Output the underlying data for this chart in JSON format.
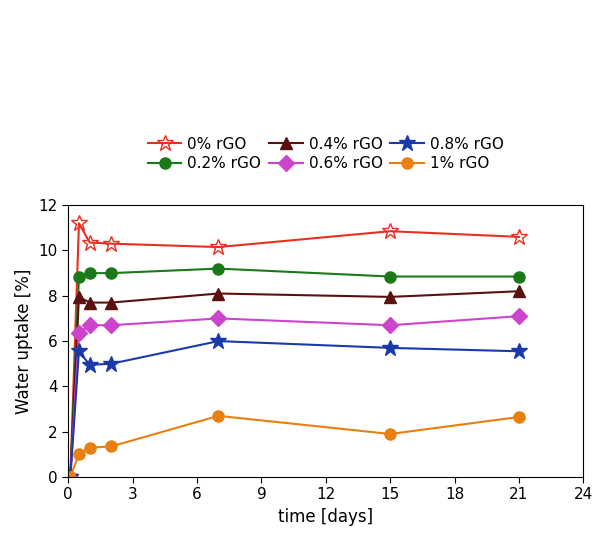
{
  "series": [
    {
      "label": "0% rGO",
      "color": "#e83020",
      "marker": "*",
      "markersize": 12,
      "markerfacecolor": "none",
      "x": [
        0,
        0.1,
        0.5,
        1,
        2,
        7,
        15,
        21
      ],
      "y": [
        0,
        0.02,
        11.2,
        10.35,
        10.3,
        10.15,
        10.85,
        10.6
      ]
    },
    {
      "label": "0.2% rGO",
      "color": "#1a7a1a",
      "marker": "o",
      "markersize": 8,
      "markerfacecolor": "#1a7a1a",
      "x": [
        0,
        0.1,
        0.5,
        1,
        2,
        7,
        15,
        21
      ],
      "y": [
        0,
        0.02,
        8.85,
        9.0,
        9.0,
        9.2,
        8.85,
        8.85
      ]
    },
    {
      "label": "0.4% rGO",
      "color": "#5c1010",
      "marker": "^",
      "markersize": 9,
      "markerfacecolor": "#5c1010",
      "x": [
        0,
        0.1,
        0.5,
        1,
        2,
        7,
        15,
        21
      ],
      "y": [
        0,
        0.02,
        7.95,
        7.7,
        7.7,
        8.1,
        7.95,
        8.2
      ]
    },
    {
      "label": "0.6% rGO",
      "color": "#cc44cc",
      "marker": "D",
      "markersize": 8,
      "markerfacecolor": "#cc44cc",
      "x": [
        0,
        0.1,
        0.5,
        1,
        2,
        7,
        15,
        21
      ],
      "y": [
        0,
        0.02,
        6.35,
        6.7,
        6.7,
        7.0,
        6.7,
        7.1
      ]
    },
    {
      "label": "0.8% rGO",
      "color": "#1a3aaa",
      "marker": "*",
      "markersize": 12,
      "markerfacecolor": "#1a3aaa",
      "x": [
        0,
        0.1,
        0.5,
        1,
        2,
        7,
        15,
        21
      ],
      "y": [
        0,
        0.02,
        5.55,
        4.95,
        5.0,
        6.0,
        5.7,
        5.55
      ]
    },
    {
      "label": "1% rGO",
      "color": "#e88010",
      "marker": "o",
      "markersize": 8,
      "markerfacecolor": "#e88010",
      "x": [
        0,
        0.1,
        0.5,
        1,
        2,
        7,
        15,
        21
      ],
      "y": [
        0,
        0.02,
        1.0,
        1.3,
        1.35,
        2.7,
        1.9,
        2.65
      ]
    }
  ],
  "xlabel": "time [days]",
  "ylabel": "Water uptake [%]",
  "xlim": [
    0,
    24
  ],
  "ylim": [
    0,
    12
  ],
  "xticks": [
    0,
    3,
    6,
    9,
    12,
    15,
    18,
    21,
    24
  ],
  "yticks": [
    0,
    2,
    4,
    6,
    8,
    10,
    12
  ],
  "legend_ncol": 3,
  "figsize": [
    6.08,
    5.41
  ],
  "dpi": 100
}
